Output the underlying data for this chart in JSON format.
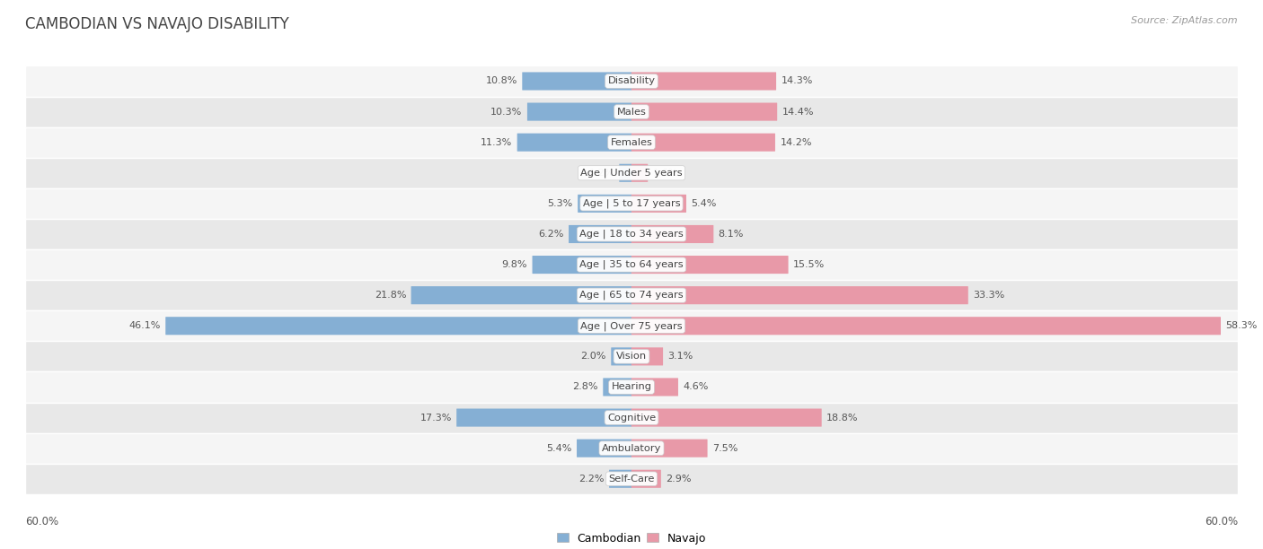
{
  "title": "CAMBODIAN VS NAVAJO DISABILITY",
  "source": "Source: ZipAtlas.com",
  "categories": [
    "Disability",
    "Males",
    "Females",
    "Age | Under 5 years",
    "Age | 5 to 17 years",
    "Age | 18 to 34 years",
    "Age | 35 to 64 years",
    "Age | 65 to 74 years",
    "Age | Over 75 years",
    "Vision",
    "Hearing",
    "Cognitive",
    "Ambulatory",
    "Self-Care"
  ],
  "cambodian": [
    10.8,
    10.3,
    11.3,
    1.2,
    5.3,
    6.2,
    9.8,
    21.8,
    46.1,
    2.0,
    2.8,
    17.3,
    5.4,
    2.2
  ],
  "navajo": [
    14.3,
    14.4,
    14.2,
    1.6,
    5.4,
    8.1,
    15.5,
    33.3,
    58.3,
    3.1,
    4.6,
    18.8,
    7.5,
    2.9
  ],
  "cambodian_color": "#85afd4",
  "navajo_color": "#e899a8",
  "cambodian_color_solid": "#4a86c8",
  "navajo_color_solid": "#e05070",
  "row_bg_light": "#f5f5f5",
  "row_bg_dark": "#e8e8e8",
  "max_val": 60.0,
  "axis_label": "60.0%",
  "legend_cambodian": "Cambodian",
  "legend_navajo": "Navajo",
  "title_color": "#444444",
  "label_color": "#555555",
  "value_color": "#555555"
}
